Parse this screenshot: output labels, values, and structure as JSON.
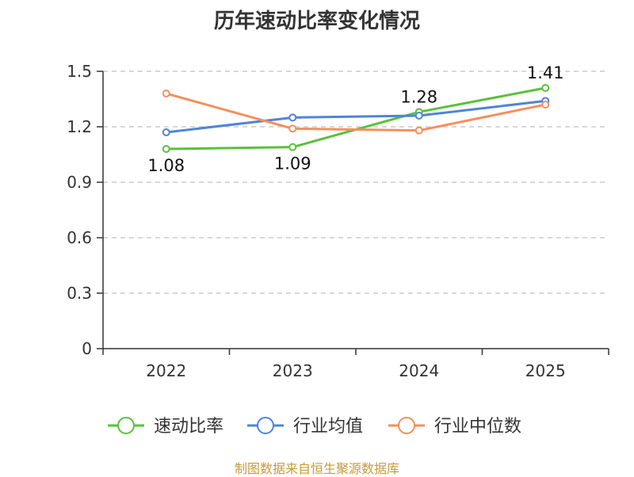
{
  "chart_data": {
    "type": "line",
    "title": "历年速动比率变化情况",
    "categories": [
      "2022",
      "2023",
      "2024",
      "2025"
    ],
    "ylim": [
      0,
      1.5
    ],
    "yticks": [
      "0",
      "0.3",
      "0.6",
      "0.9",
      "1.2",
      "1.5"
    ],
    "ytick_values": [
      0,
      0.3,
      0.6,
      0.9,
      1.2,
      1.5
    ],
    "grid": true,
    "legend_position": "bottom",
    "series": [
      {
        "name": "速动比率",
        "color": "#5ac13b",
        "values": [
          1.08,
          1.09,
          1.28,
          1.41
        ],
        "labels": [
          "1.08",
          "1.09",
          "1.28",
          "1.41"
        ]
      },
      {
        "name": "行业均值",
        "color": "#5084d8",
        "values": [
          1.17,
          1.25,
          1.26,
          1.34
        ]
      },
      {
        "name": "行业中位数",
        "color": "#f58f5e",
        "values": [
          1.38,
          1.19,
          1.18,
          1.32
        ]
      }
    ]
  },
  "source": "制图数据来自恒生聚源数据库"
}
